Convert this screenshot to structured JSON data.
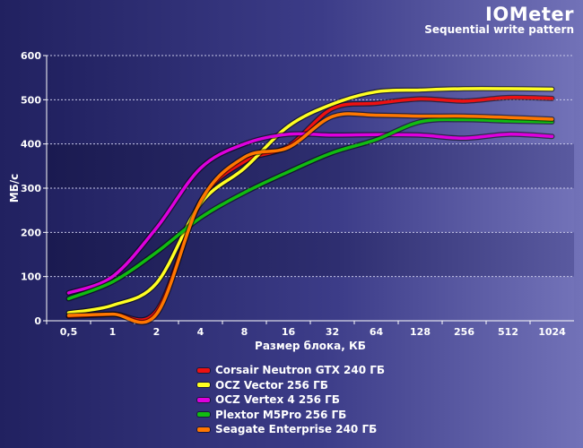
{
  "chart_data": {
    "type": "line",
    "title": "IOMeter",
    "subtitle": "Sequential write pattern",
    "xlabel": "Размер блока, КБ",
    "ylabel": "МБ/с",
    "categories": [
      "0,5",
      "1",
      "2",
      "4",
      "8",
      "16",
      "32",
      "64",
      "128",
      "256",
      "512",
      "1024"
    ],
    "ylim": [
      0,
      600
    ],
    "yticks": [
      "0",
      "100",
      "200",
      "300",
      "400",
      "500",
      "600"
    ],
    "grid": true,
    "legend_position": "bottom",
    "series": [
      {
        "name": "Corsair Neutron GTX 240 ГБ",
        "color": "#ee1111",
        "values": [
          10,
          15,
          22,
          270,
          360,
          395,
          480,
          492,
          502,
          497,
          505,
          503
        ]
      },
      {
        "name": "OCZ Vector 256 ГБ",
        "color": "#ffff22",
        "values": [
          18,
          35,
          85,
          265,
          345,
          440,
          490,
          518,
          522,
          525,
          525,
          524
        ]
      },
      {
        "name": "OCZ Vertex 4 256 ГБ",
        "color": "#dd00dd",
        "values": [
          63,
          100,
          210,
          345,
          400,
          422,
          420,
          421,
          420,
          413,
          422,
          417
        ]
      },
      {
        "name": "Plextor M5Pro 256 ГБ",
        "color": "#11bb11",
        "values": [
          50,
          88,
          155,
          233,
          290,
          337,
          380,
          410,
          450,
          455,
          452,
          450
        ]
      },
      {
        "name": "Seagate Enterprise 240 ГБ",
        "color": "#ff7700",
        "values": [
          12,
          15,
          15,
          270,
          370,
          392,
          462,
          465,
          463,
          463,
          460,
          456
        ]
      }
    ]
  }
}
